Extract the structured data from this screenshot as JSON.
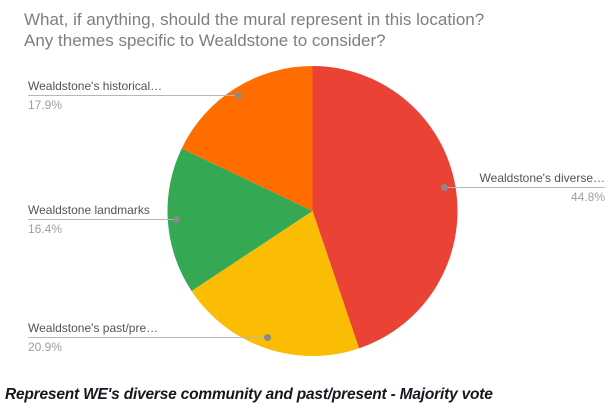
{
  "title": {
    "line1": "What, if anything, should the mural represent in this location?",
    "line2": "Any themes specific to Wealdstone to consider?"
  },
  "caption": "Represent WE's diverse community and past/present - Majority vote",
  "chart_data": {
    "type": "pie",
    "title": "What, if anything, should the mural represent in this location? Any themes specific to Wealdstone to consider?",
    "direction": "clockwise",
    "start_angle_deg": 0,
    "legend_position": "outside-callouts",
    "slices": [
      {
        "label": "Wealdstone's diverse…",
        "pct": "44.8%",
        "value": 44.8,
        "color": "#ea4335"
      },
      {
        "label": "Wealdstone's past/pre…",
        "pct": "20.9%",
        "value": 20.9,
        "color": "#fbbc04"
      },
      {
        "label": "Wealdstone landmarks",
        "pct": "16.4%",
        "value": 16.4,
        "color": "#34a853"
      },
      {
        "label": "Wealdstone's historical…",
        "pct": "17.9%",
        "value": 17.9,
        "color": "#ff6d00"
      }
    ]
  }
}
